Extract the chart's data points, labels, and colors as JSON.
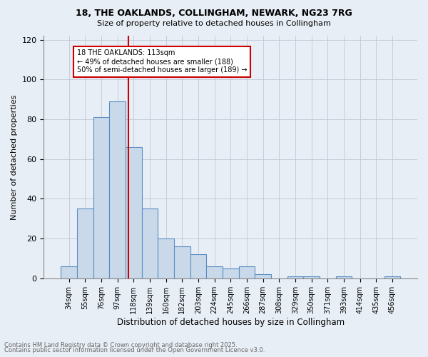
{
  "title_line1": "18, THE OAKLANDS, COLLINGHAM, NEWARK, NG23 7RG",
  "title_line2": "Size of property relative to detached houses in Collingham",
  "xlabel": "Distribution of detached houses by size in Collingham",
  "ylabel": "Number of detached properties",
  "bar_labels": [
    "34sqm",
    "55sqm",
    "76sqm",
    "97sqm",
    "118sqm",
    "139sqm",
    "160sqm",
    "182sqm",
    "203sqm",
    "224sqm",
    "245sqm",
    "266sqm",
    "287sqm",
    "308sqm",
    "329sqm",
    "350sqm",
    "371sqm",
    "393sqm",
    "414sqm",
    "435sqm",
    "456sqm"
  ],
  "bar_values": [
    6,
    35,
    81,
    89,
    66,
    35,
    20,
    16,
    12,
    6,
    5,
    6,
    2,
    0,
    1,
    1,
    0,
    1,
    0,
    0,
    1
  ],
  "bar_color": "#c9d9ea",
  "bar_edge_color": "#5a8fc4",
  "grid_color": "#c0c8d8",
  "background_color": "#e8eef5",
  "vline_color": "#cc0000",
  "vline_index": 3.68,
  "annotation_text": "18 THE OAKLANDS: 113sqm\n← 49% of detached houses are smaller (188)\n50% of semi-detached houses are larger (189) →",
  "annotation_box_color": "#ffffff",
  "annotation_box_edge_color": "#cc0000",
  "footnote_line1": "Contains HM Land Registry data © Crown copyright and database right 2025.",
  "footnote_line2": "Contains public sector information licensed under the Open Government Licence v3.0.",
  "ylim": [
    0,
    122
  ],
  "yticks": [
    0,
    20,
    40,
    60,
    80,
    100,
    120
  ]
}
